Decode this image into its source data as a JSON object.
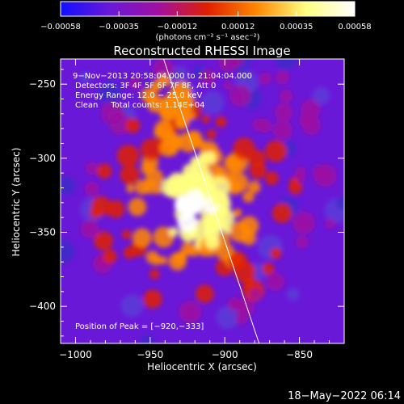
{
  "chart_data": {
    "type": "heatmap",
    "title": "Reconstructed RHESSI Image",
    "xlabel": "Heliocentric X (arcsec)",
    "ylabel": "Heliocentric Y (arcsec)",
    "xlim": [
      -1010,
      -820
    ],
    "ylim": [
      -425,
      -233
    ],
    "xticks": [
      -1000,
      -950,
      -900,
      -850
    ],
    "yticks": [
      -250,
      -300,
      -350,
      -400
    ],
    "xtick_labels": [
      "−1000",
      "−950",
      "−900",
      "−850"
    ],
    "ytick_labels": [
      "−250",
      "−300",
      "−350",
      "−400"
    ],
    "colorbar": {
      "range": [
        -0.00058,
        0.00058
      ],
      "ticks": [
        -0.00058,
        -0.00035,
        -0.00012,
        0.00012,
        0.00035,
        0.00058
      ],
      "tick_labels": [
        "−0.00058",
        "−0.00035",
        "−0.00012",
        "0.00012",
        "0.00035",
        "0.00058"
      ],
      "label": "(photons cm⁻² s⁻¹ asec⁻²)",
      "colors": [
        "#1010ff",
        "#6a18d8",
        "#a010a0",
        "#e02000",
        "#ff8800",
        "#ffff80",
        "#ffffff"
      ]
    },
    "annotations": [
      "9−Nov−2013 20:58:04.000 to 21:04:04.000",
      "Detectors: 3F 4F 5F 6F 7F 8F, Att 0",
      "Energy Range: 12.0 − 25.0 keV",
      "Clean     Total counts: 1.14E+04"
    ],
    "peak_label": "Position of Peak = [−920,−333]",
    "peak": [
      -920,
      -333
    ],
    "limb_line": [
      [
        -941,
        -233
      ],
      [
        -877,
        -425
      ]
    ],
    "background_color": "#6a18d8"
  },
  "footer": {
    "timestamp": "18−May−2022 06:14"
  }
}
